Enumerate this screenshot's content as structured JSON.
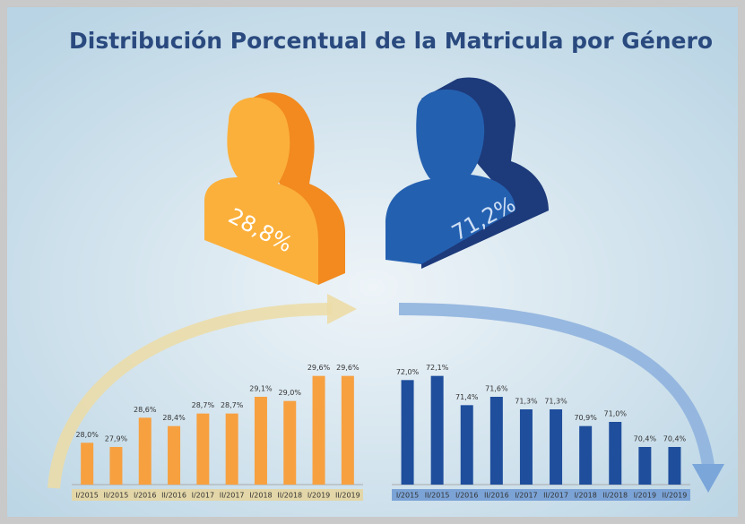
{
  "title": "Distribución Porcentual de la Matricula por Género",
  "figures": [
    {
      "value": 28.8,
      "label": "28,8%",
      "color": "#fbb03b",
      "side": "#f28a1f"
    },
    {
      "value": 71.2,
      "label": "71,2%",
      "color": "#2460b0",
      "side": "#1d3a7a"
    }
  ],
  "chart_data": [
    {
      "type": "bar",
      "categories": [
        "I/2015",
        "II/2015",
        "I/2016",
        "II/2016",
        "I/2017",
        "II/2017",
        "I/2018",
        "II/2018",
        "I/2019",
        "II/2019"
      ],
      "values": [
        28.0,
        27.9,
        28.6,
        28.4,
        28.7,
        28.7,
        29.1,
        29.0,
        29.6,
        29.6
      ],
      "value_labels": [
        "28,0%",
        "27,9%",
        "28,6%",
        "28,4%",
        "28,7%",
        "28,7%",
        "29,1%",
        "29,0%",
        "29,6%",
        "29,6%"
      ],
      "color": "#f7a040",
      "ylim": [
        27,
        30
      ]
    },
    {
      "type": "bar",
      "categories": [
        "I/2015",
        "II/2015",
        "I/2016",
        "II/2016",
        "I/2017",
        "II/2017",
        "I/2018",
        "II/2018",
        "I/2019",
        "II/2019"
      ],
      "values": [
        72.0,
        72.1,
        71.4,
        71.6,
        71.3,
        71.3,
        70.9,
        71.0,
        70.4,
        70.4
      ],
      "value_labels": [
        "72,0%",
        "72,1%",
        "71,4%",
        "71,6%",
        "71,3%",
        "71,3%",
        "70,9%",
        "71,0%",
        "70,4%",
        "70,4%"
      ],
      "color": "#1f4e9c",
      "ylim": [
        69.5,
        72.5
      ]
    }
  ]
}
